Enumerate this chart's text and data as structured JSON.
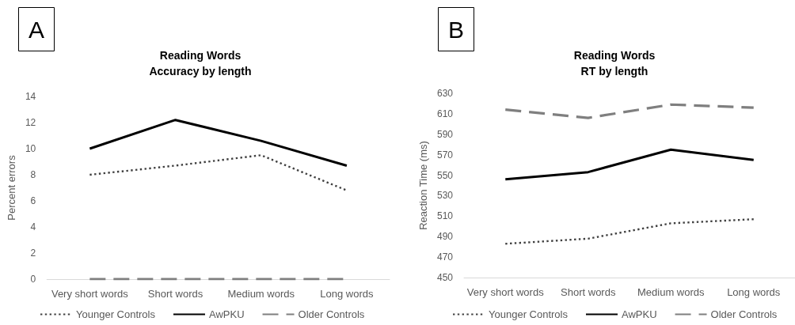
{
  "chart_data": [
    {
      "type": "line",
      "title": "Reading Words",
      "subtitle": "Accuracy by length",
      "ylabel": "Percent errors",
      "categories": [
        "Very short words",
        "Short words",
        "Medium words",
        "Long words"
      ],
      "series": [
        {
          "name": "Younger Controls",
          "color": "#404040",
          "line_style": "dotted",
          "values": [
            8.0,
            8.7,
            9.5,
            6.8
          ]
        },
        {
          "name": "AwPKU",
          "color": "#000000",
          "line_style": "solid",
          "values": [
            10.0,
            12.2,
            10.6,
            8.7
          ]
        },
        {
          "name": "Older Controls",
          "color": "#7f7f7f",
          "line_style": "dashed",
          "values": [
            0,
            0,
            0,
            0
          ]
        }
      ],
      "ylim": [
        0,
        14
      ],
      "yticks": [
        0,
        2,
        4,
        6,
        8,
        10,
        12,
        14
      ],
      "grid": false,
      "legend": "bottom",
      "marker": "none",
      "annotations": [
        "A"
      ]
    },
    {
      "type": "line",
      "title": "Reading Words",
      "subtitle": "RT by length",
      "ylabel": "Reaction Time (ms)",
      "categories": [
        "Very short words",
        "Short words",
        "Medium words",
        "Long words"
      ],
      "series": [
        {
          "name": "Younger Controls",
          "color": "#404040",
          "line_style": "dotted",
          "values": [
            483,
            488,
            503,
            507
          ]
        },
        {
          "name": "AwPKU",
          "color": "#000000",
          "line_style": "solid",
          "values": [
            546,
            553,
            575,
            565
          ]
        },
        {
          "name": "Older Controls",
          "color": "#7f7f7f",
          "line_style": "dashed",
          "values": [
            614,
            606,
            619,
            616
          ]
        }
      ],
      "ylim": [
        450,
        630
      ],
      "yticks": [
        450,
        470,
        490,
        510,
        530,
        550,
        570,
        590,
        610,
        630
      ],
      "grid": false,
      "legend": "bottom",
      "marker": "none",
      "annotations": [
        "B"
      ]
    }
  ]
}
